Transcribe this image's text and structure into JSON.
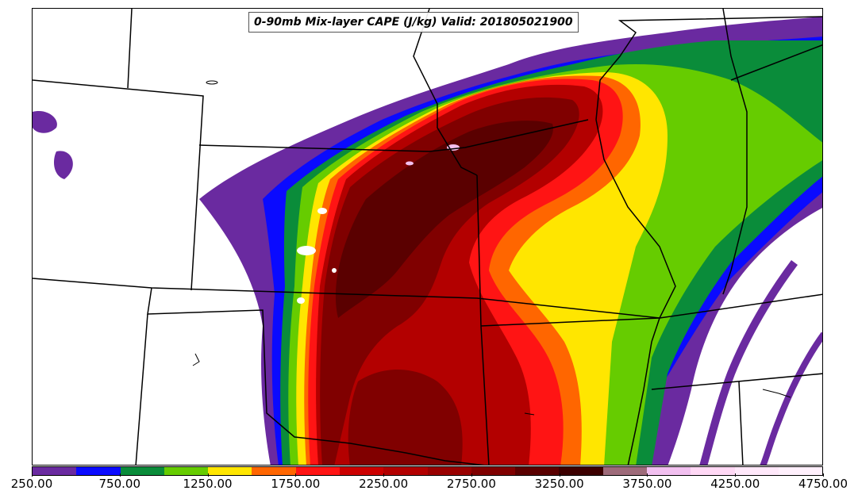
{
  "title": "0-90mb Mix-layer CAPE (J/kg) Valid: 201805021900",
  "colorbar": {
    "colors": [
      "#6a2aa0",
      "#0a0aff",
      "#0a8c3a",
      "#66cc00",
      "#ffe600",
      "#ff6600",
      "#ff1414",
      "#cc0000",
      "#b30000",
      "#990000",
      "#800000",
      "#5a0000",
      "#3d0000",
      "#9e6b7a",
      "#f2c0f0",
      "#ffd8f5",
      "#ffe8fa",
      "#fff0fc"
    ],
    "tick_labels": [
      "250.00",
      "750.00",
      "1250.00",
      "1750.00",
      "2250.00",
      "2750.00",
      "3250.00",
      "3750.00",
      "4250.00",
      "4750.00"
    ]
  },
  "palette": {
    "purple": "#6a2aa0",
    "blue": "#0a0aff",
    "darkgreen": "#0a8c3a",
    "lightgreen": "#66cc00",
    "yellow": "#ffe600",
    "orange": "#ff6600",
    "red": "#ff1414",
    "red2": "#cc0000",
    "maroon1": "#a60000",
    "maroon2": "#800000",
    "maroon3": "#5a0000",
    "pink": "#f2c0f0"
  }
}
